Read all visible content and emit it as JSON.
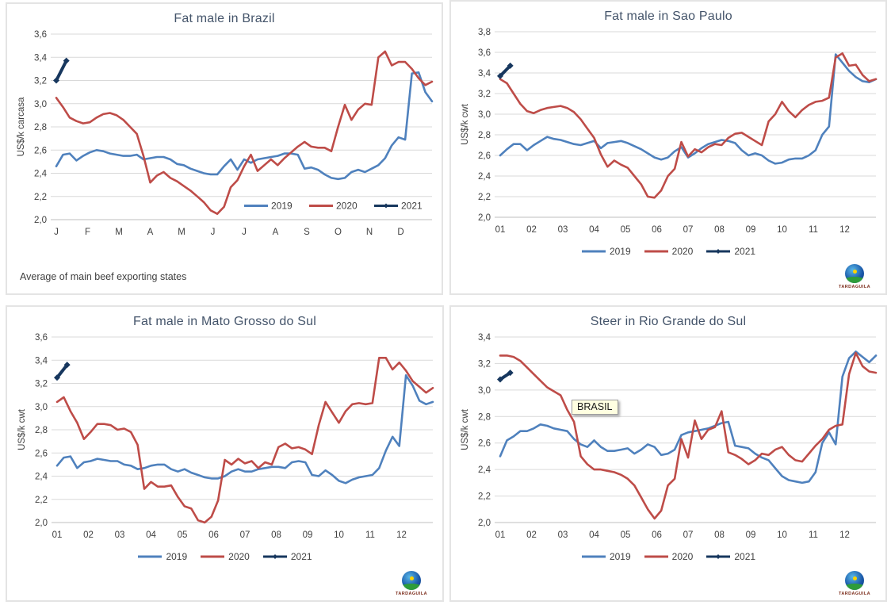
{
  "colors": {
    "series_2019": "#4F81BD",
    "series_2020": "#BE4C48",
    "series_2021": "#17375E",
    "grid": "#D9D9D9",
    "axis": "#BFBFBF",
    "tick_text": "#404040",
    "title_text": "#44546A",
    "annotation_bg": "#FFFFE1"
  },
  "logo": {
    "name": "TARDAGUILA"
  },
  "chart_data": [
    {
      "type": "line",
      "title": "Fat male in Brazil",
      "ylabel": "US$/k carcasa",
      "ylim": [
        2.0,
        3.6
      ],
      "ystep": 0.2,
      "x_tick_labels": [
        "J",
        "F",
        "M",
        "A",
        "M",
        "J",
        "J",
        "A",
        "S",
        "O",
        "N",
        "D"
      ],
      "footnote": "Average of main beef exporting states",
      "legend_inside": {
        "x_frac": 0.5,
        "y_value": 2.12
      },
      "annotation": null,
      "series": [
        {
          "name": "2019",
          "color_key": "series_2019",
          "values": [
            2.46,
            2.56,
            2.57,
            2.51,
            2.55,
            2.58,
            2.6,
            2.59,
            2.57,
            2.56,
            2.55,
            2.55,
            2.56,
            2.52,
            2.53,
            2.54,
            2.54,
            2.52,
            2.48,
            2.47,
            2.44,
            2.42,
            2.4,
            2.39,
            2.39,
            2.46,
            2.52,
            2.43,
            2.52,
            2.49,
            2.52,
            2.53,
            2.54,
            2.55,
            2.57,
            2.57,
            2.56,
            2.44,
            2.45,
            2.43,
            2.39,
            2.36,
            2.35,
            2.36,
            2.41,
            2.43,
            2.41,
            2.44,
            2.47,
            2.53,
            2.64,
            2.71,
            2.69,
            3.26,
            3.27,
            3.1,
            3.02
          ]
        },
        {
          "name": "2020",
          "color_key": "series_2020",
          "values": [
            3.05,
            2.97,
            2.88,
            2.85,
            2.83,
            2.84,
            2.88,
            2.91,
            2.92,
            2.9,
            2.86,
            2.8,
            2.74,
            2.55,
            2.32,
            2.38,
            2.41,
            2.36,
            2.33,
            2.29,
            2.25,
            2.2,
            2.15,
            2.08,
            2.05,
            2.11,
            2.28,
            2.34,
            2.46,
            2.56,
            2.42,
            2.47,
            2.52,
            2.47,
            2.53,
            2.58,
            2.63,
            2.67,
            2.63,
            2.62,
            2.62,
            2.59,
            2.8,
            2.99,
            2.86,
            2.95,
            3.0,
            2.99,
            3.4,
            3.45,
            3.33,
            3.36,
            3.36,
            3.3,
            3.22,
            3.16,
            3.19
          ]
        },
        {
          "name": "2021",
          "color_key": "series_2021",
          "marker": "diamond",
          "x": [
            0,
            1.5
          ],
          "values": [
            3.2,
            3.37
          ]
        }
      ]
    },
    {
      "type": "line",
      "title": "Fat male in Sao Paulo",
      "ylabel": "US$/k cwt",
      "ylim": [
        2.0,
        3.8
      ],
      "ystep": 0.2,
      "x_tick_labels": [
        "01",
        "02",
        "03",
        "04",
        "05",
        "06",
        "07",
        "08",
        "09",
        "10",
        "11",
        "12"
      ],
      "footnote": null,
      "legend_inside": null,
      "annotation": null,
      "series": [
        {
          "name": "2019",
          "color_key": "series_2019",
          "values": [
            2.6,
            2.66,
            2.71,
            2.71,
            2.65,
            2.7,
            2.74,
            2.78,
            2.76,
            2.75,
            2.73,
            2.71,
            2.7,
            2.72,
            2.74,
            2.67,
            2.72,
            2.73,
            2.74,
            2.72,
            2.69,
            2.66,
            2.62,
            2.58,
            2.56,
            2.58,
            2.64,
            2.68,
            2.58,
            2.62,
            2.67,
            2.71,
            2.73,
            2.75,
            2.74,
            2.72,
            2.65,
            2.6,
            2.62,
            2.6,
            2.55,
            2.52,
            2.53,
            2.56,
            2.57,
            2.57,
            2.6,
            2.65,
            2.8,
            2.88,
            3.58,
            3.5,
            3.42,
            3.36,
            3.32,
            3.31,
            3.34
          ]
        },
        {
          "name": "2020",
          "color_key": "series_2020",
          "values": [
            3.34,
            3.3,
            3.2,
            3.1,
            3.03,
            3.01,
            3.04,
            3.06,
            3.07,
            3.08,
            3.06,
            3.02,
            2.95,
            2.86,
            2.77,
            2.61,
            2.49,
            2.55,
            2.51,
            2.48,
            2.4,
            2.32,
            2.2,
            2.19,
            2.26,
            2.4,
            2.47,
            2.73,
            2.59,
            2.66,
            2.63,
            2.68,
            2.71,
            2.7,
            2.77,
            2.81,
            2.82,
            2.78,
            2.74,
            2.7,
            2.93,
            3.0,
            3.12,
            3.03,
            2.97,
            3.04,
            3.09,
            3.12,
            3.13,
            3.16,
            3.55,
            3.59,
            3.47,
            3.48,
            3.38,
            3.32,
            3.34
          ]
        },
        {
          "name": "2021",
          "color_key": "series_2021",
          "marker": "diamond",
          "x": [
            0,
            1.5
          ],
          "values": [
            3.37,
            3.47
          ]
        }
      ]
    },
    {
      "type": "line",
      "title": "Fat male in Mato Grosso do Sul",
      "ylabel": "US$/k cwt",
      "ylim": [
        2.0,
        3.6
      ],
      "ystep": 0.2,
      "x_tick_labels": [
        "01",
        "02",
        "03",
        "04",
        "05",
        "06",
        "07",
        "08",
        "09",
        "10",
        "11",
        "12"
      ],
      "footnote": null,
      "legend_inside": null,
      "annotation": null,
      "series": [
        {
          "name": "2019",
          "color_key": "series_2019",
          "values": [
            2.49,
            2.56,
            2.57,
            2.47,
            2.52,
            2.53,
            2.55,
            2.54,
            2.53,
            2.53,
            2.5,
            2.49,
            2.46,
            2.47,
            2.49,
            2.5,
            2.5,
            2.46,
            2.44,
            2.46,
            2.43,
            2.41,
            2.39,
            2.38,
            2.38,
            2.4,
            2.44,
            2.46,
            2.44,
            2.44,
            2.46,
            2.47,
            2.48,
            2.48,
            2.47,
            2.52,
            2.53,
            2.52,
            2.41,
            2.4,
            2.45,
            2.41,
            2.36,
            2.34,
            2.37,
            2.39,
            2.4,
            2.41,
            2.47,
            2.62,
            2.74,
            2.66,
            3.27,
            3.18,
            3.05,
            3.02,
            3.04
          ]
        },
        {
          "name": "2020",
          "color_key": "series_2020",
          "values": [
            3.04,
            3.08,
            2.96,
            2.86,
            2.72,
            2.78,
            2.85,
            2.85,
            2.84,
            2.8,
            2.81,
            2.78,
            2.67,
            2.29,
            2.35,
            2.31,
            2.31,
            2.32,
            2.22,
            2.14,
            2.12,
            2.02,
            2.0,
            2.05,
            2.19,
            2.54,
            2.5,
            2.55,
            2.51,
            2.53,
            2.47,
            2.52,
            2.5,
            2.65,
            2.68,
            2.64,
            2.65,
            2.63,
            2.59,
            2.84,
            3.04,
            2.95,
            2.86,
            2.96,
            3.02,
            3.03,
            3.02,
            3.03,
            3.42,
            3.42,
            3.32,
            3.38,
            3.31,
            3.22,
            3.17,
            3.12,
            3.16
          ]
        },
        {
          "name": "2021",
          "color_key": "series_2021",
          "marker": "diamond",
          "x": [
            0,
            1.5
          ],
          "values": [
            3.25,
            3.36
          ]
        }
      ]
    },
    {
      "type": "line",
      "title": "Steer in Rio Grande do Sul",
      "ylabel": "US$/k cwt",
      "ylim": [
        2.0,
        3.4
      ],
      "ystep": 0.2,
      "x_tick_labels": [
        "01",
        "02",
        "03",
        "04",
        "05",
        "06",
        "07",
        "08",
        "09",
        "10",
        "11",
        "12"
      ],
      "footnote": null,
      "legend_inside": null,
      "annotation": {
        "text": "BRASIL",
        "x_frac": 0.19,
        "y_value": 2.93
      },
      "series": [
        {
          "name": "2019",
          "color_key": "series_2019",
          "values": [
            2.5,
            2.62,
            2.65,
            2.69,
            2.69,
            2.71,
            2.74,
            2.73,
            2.71,
            2.7,
            2.69,
            2.63,
            2.59,
            2.57,
            2.62,
            2.57,
            2.54,
            2.54,
            2.55,
            2.56,
            2.52,
            2.55,
            2.59,
            2.57,
            2.51,
            2.52,
            2.55,
            2.66,
            2.68,
            2.69,
            2.7,
            2.71,
            2.73,
            2.75,
            2.76,
            2.58,
            2.57,
            2.56,
            2.52,
            2.49,
            2.47,
            2.41,
            2.35,
            2.32,
            2.31,
            2.3,
            2.31,
            2.38,
            2.6,
            2.68,
            2.59,
            3.1,
            3.24,
            3.29,
            3.25,
            3.21,
            3.26
          ]
        },
        {
          "name": "2020",
          "color_key": "series_2020",
          "values": [
            3.26,
            3.26,
            3.25,
            3.22,
            3.17,
            3.12,
            3.07,
            3.02,
            2.99,
            2.96,
            2.85,
            2.76,
            2.5,
            2.44,
            2.4,
            2.4,
            2.39,
            2.38,
            2.36,
            2.33,
            2.28,
            2.19,
            2.1,
            2.03,
            2.09,
            2.28,
            2.33,
            2.63,
            2.49,
            2.77,
            2.63,
            2.7,
            2.72,
            2.84,
            2.53,
            2.51,
            2.48,
            2.44,
            2.47,
            2.52,
            2.51,
            2.55,
            2.57,
            2.51,
            2.47,
            2.46,
            2.52,
            2.58,
            2.63,
            2.7,
            2.73,
            2.74,
            3.12,
            3.28,
            3.18,
            3.14,
            3.13
          ]
        },
        {
          "name": "2021",
          "color_key": "series_2021",
          "marker": "diamond",
          "x": [
            0,
            1.5
          ],
          "values": [
            3.08,
            3.13
          ]
        }
      ]
    }
  ]
}
